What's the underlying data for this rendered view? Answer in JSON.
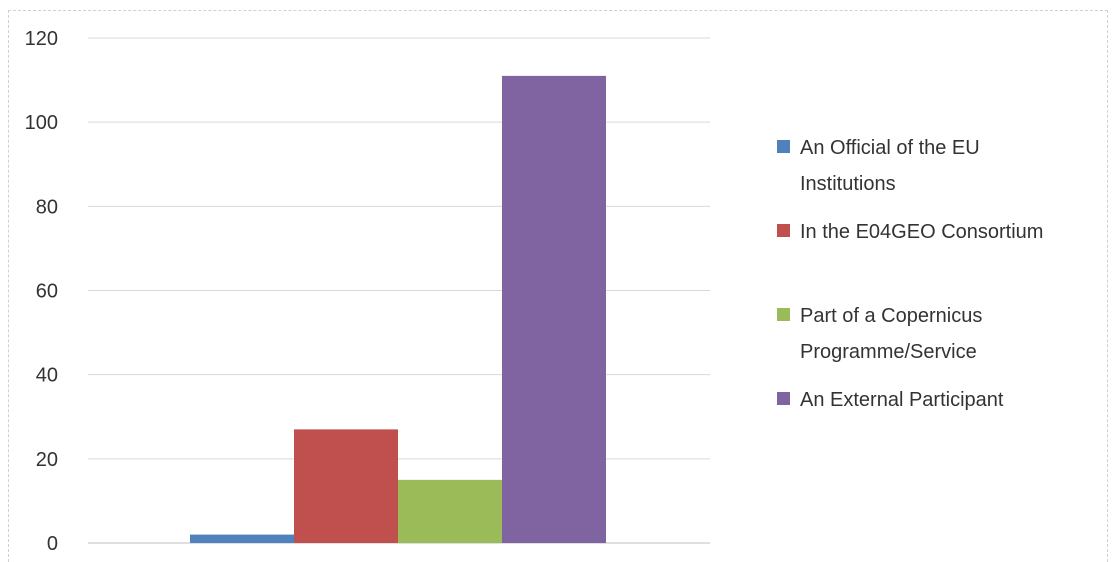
{
  "chart_data": {
    "type": "bar",
    "title": "",
    "xlabel": "",
    "ylabel": "",
    "ylim": [
      0,
      120
    ],
    "yticks": [
      0,
      20,
      40,
      60,
      80,
      100,
      120
    ],
    "grid": true,
    "legend_position": "right",
    "series": [
      {
        "name": "An Official of the EU Institutions",
        "legend_lines": [
          "An Official of the EU",
          "Institutions"
        ],
        "value": 2,
        "color": "#4F81BD"
      },
      {
        "name": "In the E04GEO Consortium",
        "legend_lines": [
          "In the E04GEO Consortium"
        ],
        "value": 27,
        "color": "#C0504D"
      },
      {
        "name": "Part of a Copernicus Programme/Service",
        "legend_lines": [
          "Part of a Copernicus",
          "Programme/Service"
        ],
        "value": 15,
        "color": "#9BBB59"
      },
      {
        "name": "An External Participant",
        "legend_lines": [
          "An External Participant"
        ],
        "value": 111,
        "color": "#8064A2"
      }
    ]
  }
}
